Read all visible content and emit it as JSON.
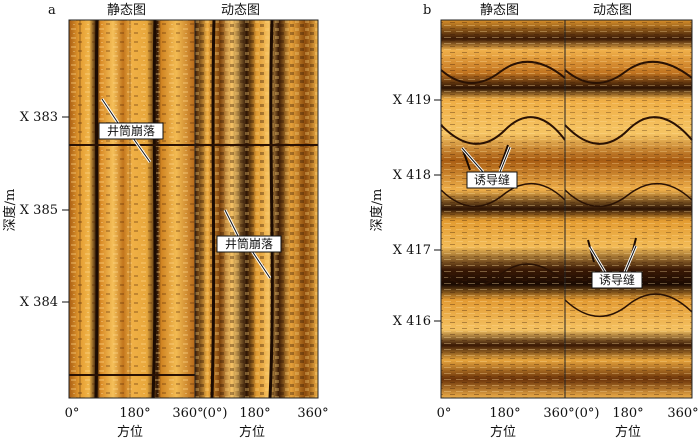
{
  "panel_a": {
    "letter": "a",
    "static_title": "静态图",
    "dynamic_title": "动态图",
    "depth_ticks": [
      "X 383",
      "X 385",
      "X 384"
    ],
    "axis_label": "深度/m",
    "azimuth_ticks_static": [
      "0°",
      "180°",
      "360°"
    ],
    "azimuth_ticks_dynamic": [
      "(0°)",
      "180°",
      "360°"
    ],
    "azimuth_label": "方位",
    "callouts": [
      "井筒崩落",
      "井筒崩落"
    ]
  },
  "panel_b": {
    "letter": "b",
    "static_title": "静态图",
    "dynamic_title": "动态图",
    "depth_ticks": [
      "X 419",
      "X 418",
      "X 417",
      "X 416"
    ],
    "axis_label": "深度/m",
    "azimuth_ticks_static": [
      "0°",
      "180°",
      "360°"
    ],
    "azimuth_ticks_dynamic": [
      "(0°)",
      "180°",
      "360°"
    ],
    "azimuth_label": "方位",
    "callouts": [
      "诱导缝",
      "诱导缝"
    ]
  }
}
